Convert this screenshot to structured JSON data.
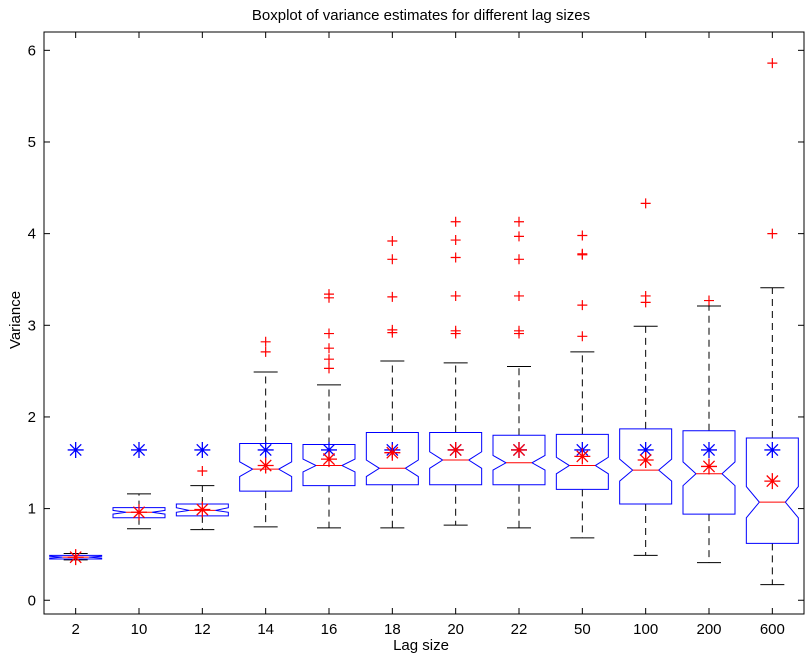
{
  "chart_data": {
    "type": "boxplot",
    "title": "Boxplot of variance estimates for different lag sizes",
    "xlabel": "Lag size",
    "ylabel": "Variance",
    "ylim": [
      -0.15,
      6.2
    ],
    "yticks": [
      0,
      1,
      2,
      3,
      4,
      5,
      6
    ],
    "notched": true,
    "grid": false,
    "colors": {
      "box": "#0000ff",
      "median": "#ff0000",
      "whisker": "#000000",
      "outlier": "#ff0000",
      "true_marker": "#0000ff",
      "mean_marker": "#ff0000"
    },
    "categories": [
      "2",
      "10",
      "12",
      "14",
      "16",
      "18",
      "20",
      "22",
      "50",
      "100",
      "200",
      "600"
    ],
    "boxes": [
      {
        "category": "2",
        "whisker_low": 0.44,
        "q1": 0.45,
        "median": 0.47,
        "q3": 0.49,
        "whisker_high": 0.51,
        "notch_low": 0.46,
        "notch_high": 0.48,
        "outliers": [],
        "mean": 0.47,
        "true_value": 1.64
      },
      {
        "category": "10",
        "whisker_low": 0.78,
        "q1": 0.9,
        "median": 0.96,
        "q3": 1.01,
        "whisker_high": 1.16,
        "notch_low": 0.94,
        "notch_high": 0.98,
        "outliers": [],
        "mean": 0.96,
        "true_value": 1.64
      },
      {
        "category": "12",
        "whisker_low": 0.77,
        "q1": 0.92,
        "median": 0.98,
        "q3": 1.05,
        "whisker_high": 1.25,
        "notch_low": 0.96,
        "notch_high": 1.01,
        "outliers": [
          1.41
        ],
        "mean": 0.99,
        "true_value": 1.64
      },
      {
        "category": "14",
        "whisker_low": 0.8,
        "q1": 1.19,
        "median": 1.43,
        "q3": 1.71,
        "whisker_high": 2.49,
        "notch_low": 1.35,
        "notch_high": 1.51,
        "outliers": [
          2.71,
          2.82
        ],
        "mean": 1.47,
        "true_value": 1.64
      },
      {
        "category": "16",
        "whisker_low": 0.79,
        "q1": 1.25,
        "median": 1.47,
        "q3": 1.7,
        "whisker_high": 2.35,
        "notch_low": 1.4,
        "notch_high": 1.54,
        "outliers": [
          2.53,
          2.63,
          2.75,
          2.91,
          3.3,
          3.34
        ],
        "mean": 1.54,
        "true_value": 1.64
      },
      {
        "category": "18",
        "whisker_low": 0.79,
        "q1": 1.26,
        "median": 1.44,
        "q3": 1.83,
        "whisker_high": 2.61,
        "notch_low": 1.35,
        "notch_high": 1.53,
        "outliers": [
          2.92,
          2.95,
          3.31,
          3.72,
          3.92
        ],
        "mean": 1.61,
        "true_value": 1.64
      },
      {
        "category": "20",
        "whisker_low": 0.82,
        "q1": 1.26,
        "median": 1.53,
        "q3": 1.83,
        "whisker_high": 2.59,
        "notch_low": 1.44,
        "notch_high": 1.62,
        "outliers": [
          2.91,
          2.94,
          3.32,
          3.74,
          3.93,
          4.13
        ],
        "mean": 1.64,
        "true_value": 1.64
      },
      {
        "category": "22",
        "whisker_low": 0.79,
        "q1": 1.26,
        "median": 1.5,
        "q3": 1.8,
        "whisker_high": 2.55,
        "notch_low": 1.42,
        "notch_high": 1.58,
        "outliers": [
          2.91,
          2.94,
          3.32,
          3.72,
          3.97,
          4.13
        ],
        "mean": 1.64,
        "true_value": 1.64
      },
      {
        "category": "50",
        "whisker_low": 0.68,
        "q1": 1.21,
        "median": 1.47,
        "q3": 1.81,
        "whisker_high": 2.71,
        "notch_low": 1.38,
        "notch_high": 1.56,
        "outliers": [
          2.88,
          3.22,
          3.77,
          3.78,
          3.98
        ],
        "mean": 1.57,
        "true_value": 1.64
      },
      {
        "category": "100",
        "whisker_low": 0.49,
        "q1": 1.05,
        "median": 1.42,
        "q3": 1.87,
        "whisker_high": 2.99,
        "notch_low": 1.3,
        "notch_high": 1.54,
        "outliers": [
          3.25,
          3.32,
          4.33
        ],
        "mean": 1.53,
        "true_value": 1.64
      },
      {
        "category": "200",
        "whisker_low": 0.41,
        "q1": 0.94,
        "median": 1.38,
        "q3": 1.85,
        "whisker_high": 3.21,
        "notch_low": 1.25,
        "notch_high": 1.51,
        "outliers": [
          3.27
        ],
        "mean": 1.46,
        "true_value": 1.64
      },
      {
        "category": "600",
        "whisker_low": 0.17,
        "q1": 0.62,
        "median": 1.07,
        "q3": 1.77,
        "whisker_high": 3.41,
        "notch_low": 0.9,
        "notch_high": 1.24,
        "outliers": [
          4.0,
          5.86
        ],
        "mean": 1.3,
        "true_value": 1.64
      }
    ]
  }
}
